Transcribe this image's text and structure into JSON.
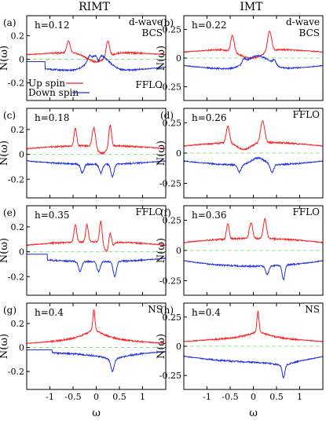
{
  "column_titles": [
    "RIMT",
    "IMT"
  ],
  "legend": {
    "up": "Up spin",
    "down": "Down spin"
  },
  "colors": {
    "up": "#ff2020",
    "down": "#1f2fe0",
    "zero": "#90e090"
  },
  "ylabel": "N(ω)",
  "xlabel": "ω",
  "chart_data": [
    {
      "type": "line",
      "panel": "(a)",
      "h_label": "h=0.12",
      "annotation": "d-wave\nBCS",
      "annotation2": "FFLO",
      "xlim": [
        -1.5,
        1.5
      ],
      "ylim": [
        -0.35,
        0.37
      ],
      "yticks": [
        "0.2",
        "0",
        "-0.2"
      ],
      "yvals": [
        0.2,
        0,
        -0.2
      ],
      "up_peaks": [
        [
          -0.6,
          0.05,
          0.1
        ],
        [
          0.25,
          0.05,
          0.14
        ]
      ],
      "up_base": 0.06,
      "up_dip": [
        0,
        0.3,
        0.08
      ],
      "down_peaks": [
        [
          -0.15,
          0.05,
          0.04
        ],
        [
          0.05,
          0.04,
          -0.05
        ]
      ],
      "down_base": -0.1,
      "down_dip": [
        0.05,
        0.3,
        0.14
      ],
      "step_x": -1.1
    },
    {
      "type": "line",
      "panel": "(b)",
      "h_label": "h=0.22",
      "annotation": "d-wave\nBCS",
      "xlim": [
        -1.5,
        1.5
      ],
      "ylim": [
        -0.37,
        0.37
      ],
      "yticks": [
        "0.25",
        "0",
        "-0.25"
      ],
      "yvals": [
        0.25,
        0,
        -0.25
      ],
      "up_peaks": [
        [
          -0.45,
          0.05,
          0.14
        ],
        [
          0.35,
          0.06,
          0.18
        ]
      ],
      "up_base": 0.08,
      "up_dip": [
        -0.05,
        0.35,
        0.08
      ],
      "down_peaks": [
        [
          -0.2,
          0.05,
          0.04
        ],
        [
          0.45,
          0.05,
          0.04
        ]
      ],
      "down_base": -0.1,
      "down_dip": [
        0.1,
        0.35,
        0.12
      ]
    },
    {
      "type": "line",
      "panel": "(c)",
      "h_label": "h=0.18",
      "xlim": [
        -1.5,
        1.5
      ],
      "ylim": [
        -0.35,
        0.37
      ],
      "yticks": [
        "0.2",
        "0",
        "-0.2"
      ],
      "yvals": [
        0.2,
        0,
        -0.2
      ],
      "up_peaks": [
        [
          -0.45,
          0.04,
          0.14
        ],
        [
          -0.05,
          0.05,
          0.16
        ],
        [
          0.3,
          0.04,
          0.18
        ]
      ],
      "up_base": 0.07,
      "up_dip": [
        0.12,
        0.15,
        0.06
      ],
      "down_peaks": [
        [
          -0.3,
          0.05,
          -0.07
        ],
        [
          0.1,
          0.05,
          -0.07
        ],
        [
          0.35,
          0.05,
          -0.1
        ]
      ],
      "down_base": -0.08,
      "down_dip": [
        0,
        0,
        0
      ]
    },
    {
      "type": "line",
      "panel": "(d)",
      "h_label": "h=0.26",
      "annotation": "FFLO",
      "xlim": [
        -1.5,
        1.5
      ],
      "ylim": [
        -0.37,
        0.37
      ],
      "yticks": [
        "0.25",
        "0",
        "-0.25"
      ],
      "yvals": [
        0.25,
        0,
        -0.25
      ],
      "up_peaks": [
        [
          -0.55,
          0.05,
          0.14
        ],
        [
          0.2,
          0.06,
          0.18
        ]
      ],
      "up_base": 0.09,
      "up_dip": [
        -0.2,
        0.2,
        0.06
      ],
      "down_peaks": [
        [
          -0.3,
          0.05,
          -0.06
        ],
        [
          0.4,
          0.05,
          -0.07
        ]
      ],
      "down_base": -0.1,
      "down_dip": [
        0.1,
        0.2,
        0.06
      ]
    },
    {
      "type": "line",
      "panel": "(e)",
      "h_label": "h=0.35",
      "annotation": "FFLO",
      "xlim": [
        -1.5,
        1.5
      ],
      "ylim": [
        -0.35,
        0.37
      ],
      "yticks": [
        "0.2",
        "0",
        "-0.2"
      ],
      "yvals": [
        0.2,
        0,
        -0.2
      ],
      "up_peaks": [
        [
          -0.45,
          0.04,
          0.14
        ],
        [
          -0.2,
          0.04,
          0.14
        ],
        [
          0.1,
          0.04,
          0.18
        ],
        [
          0.3,
          0.04,
          0.14
        ]
      ],
      "up_base": 0.08,
      "up_dip": [
        0.25,
        0.12,
        0.08
      ],
      "down_peaks": [
        [
          -0.35,
          0.05,
          -0.08
        ],
        [
          0.05,
          0.05,
          -0.08
        ],
        [
          0.4,
          0.05,
          -0.12
        ]
      ],
      "down_base": -0.08,
      "down_dip": [
        0,
        0,
        0
      ],
      "step_x": -1.05
    },
    {
      "type": "line",
      "panel": "(f)",
      "h_label": "h=0.36",
      "annotation": "FFLO",
      "xlim": [
        -1.5,
        1.5
      ],
      "ylim": [
        -0.37,
        0.37
      ],
      "yticks": [
        "0.25",
        "0",
        "-0.25"
      ],
      "yvals": [
        0.25,
        0,
        -0.25
      ],
      "up_peaks": [
        [
          -0.55,
          0.04,
          0.13
        ],
        [
          -0.05,
          0.05,
          0.13
        ],
        [
          0.25,
          0.05,
          0.16
        ]
      ],
      "up_base": 0.1,
      "up_dip": [
        0,
        0,
        0
      ],
      "down_peaks": [
        [
          0.3,
          0.05,
          -0.07
        ],
        [
          0.65,
          0.04,
          -0.12
        ]
      ],
      "down_base": -0.13,
      "down_dip": [
        0,
        0,
        0
      ]
    },
    {
      "type": "line",
      "panel": "(g)",
      "h_label": "h=0.4",
      "annotation": "NS",
      "xlim": [
        -1.5,
        1.5
      ],
      "ylim": [
        -0.35,
        0.37
      ],
      "yticks": [
        "0.2",
        "0",
        "-0.2"
      ],
      "yvals": [
        0.2,
        0,
        -0.2
      ],
      "up_peaks": [
        [
          -0.05,
          0.03,
          0.16
        ]
      ],
      "up_base": 0.05,
      "up_cusp": [
        -0.05,
        0.18
      ],
      "down_peaks": [
        [
          0.35,
          0.05,
          -0.09
        ]
      ],
      "down_base": -0.05,
      "down_cusp": [
        0.35,
        -0.1
      ],
      "step_x": -0.95
    },
    {
      "type": "line",
      "panel": "(h)",
      "h_label": "h=0.4",
      "annotation": "NS",
      "xlim": [
        -1.5,
        1.5
      ],
      "ylim": [
        -0.37,
        0.37
      ],
      "yticks": [
        "0.25",
        "0",
        "-0.25"
      ],
      "yvals": [
        0.25,
        0,
        -0.25
      ],
      "up_peaks": [
        [
          0.1,
          0.03,
          0.17
        ]
      ],
      "up_base": 0.06,
      "up_cusp": [
        0.1,
        0.12
      ],
      "down_peaks": [
        [
          0.65,
          0.04,
          -0.1
        ]
      ],
      "down_base": -0.13,
      "down_cusp": [
        0.65,
        -0.08
      ]
    }
  ],
  "xticks": [
    "-1",
    "-0.5",
    "0",
    "0.5",
    "1"
  ],
  "xtick_values": [
    -1,
    -0.5,
    0,
    0.5,
    1
  ]
}
